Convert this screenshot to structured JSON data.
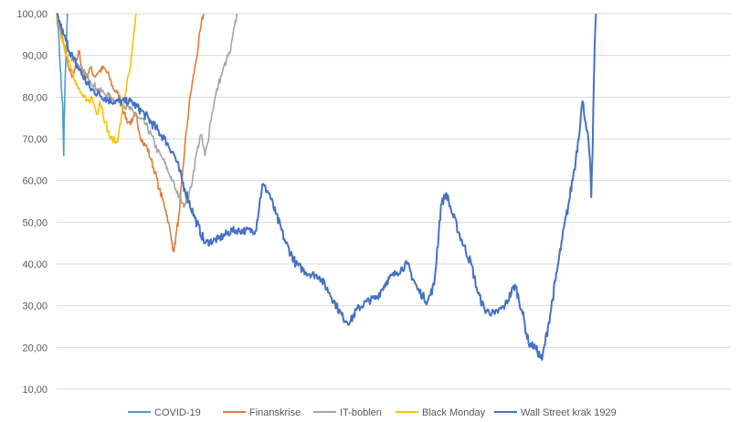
{
  "chart_data": {
    "type": "line",
    "title": "",
    "xlabel": "",
    "ylabel": "",
    "ylim": [
      10,
      100
    ],
    "y_ticks": [
      "10,00",
      "20,00",
      "30,00",
      "40,00",
      "50,00",
      "60,00",
      "70,00",
      "80,00",
      "90,00",
      "100,00"
    ],
    "grid": true,
    "legend_position": "bottom",
    "x_index_max": 1000,
    "series": [
      {
        "name": "COVID-19",
        "color": "#4e9ad3",
        "points": [
          [
            0,
            100
          ],
          [
            2,
            97
          ],
          [
            4,
            92
          ],
          [
            5,
            88
          ],
          [
            6,
            86
          ],
          [
            7,
            82
          ],
          [
            8,
            80
          ],
          [
            8.5,
            79
          ],
          [
            9,
            78
          ],
          [
            9.5,
            73
          ],
          [
            10,
            70
          ],
          [
            10.5,
            66
          ],
          [
            11,
            72
          ],
          [
            11.5,
            76
          ],
          [
            12,
            80
          ],
          [
            12.5,
            83
          ],
          [
            13,
            86
          ],
          [
            14,
            90
          ],
          [
            15,
            95
          ],
          [
            16,
            100
          ]
        ]
      },
      {
        "name": "Finanskrise",
        "color": "#e07b39",
        "points": [
          [
            0,
            100
          ],
          [
            6,
            96
          ],
          [
            12,
            91
          ],
          [
            18,
            87
          ],
          [
            24,
            85
          ],
          [
            30,
            89
          ],
          [
            34,
            91
          ],
          [
            38,
            86
          ],
          [
            44,
            85
          ],
          [
            50,
            87
          ],
          [
            56,
            85
          ],
          [
            62,
            86
          ],
          [
            70,
            87
          ],
          [
            78,
            85
          ],
          [
            84,
            82
          ],
          [
            90,
            81
          ],
          [
            96,
            79
          ],
          [
            100,
            76
          ],
          [
            106,
            74
          ],
          [
            112,
            74
          ],
          [
            118,
            76
          ],
          [
            122,
            72
          ],
          [
            128,
            69
          ],
          [
            134,
            68
          ],
          [
            140,
            65
          ],
          [
            146,
            62
          ],
          [
            152,
            58
          ],
          [
            158,
            55
          ],
          [
            162,
            53
          ],
          [
            166,
            50
          ],
          [
            170,
            46
          ],
          [
            174,
            43
          ],
          [
            178,
            48
          ],
          [
            182,
            52
          ],
          [
            186,
            60
          ],
          [
            190,
            68
          ],
          [
            194,
            74
          ],
          [
            198,
            80
          ],
          [
            202,
            84
          ],
          [
            206,
            88
          ],
          [
            210,
            92
          ],
          [
            214,
            97
          ],
          [
            218,
            100
          ]
        ]
      },
      {
        "name": "IT-boblen",
        "color": "#a5a5a5",
        "points": [
          [
            0,
            100
          ],
          [
            10,
            93
          ],
          [
            20,
            90
          ],
          [
            30,
            88
          ],
          [
            40,
            86
          ],
          [
            50,
            84
          ],
          [
            60,
            82
          ],
          [
            70,
            81
          ],
          [
            80,
            80
          ],
          [
            90,
            79
          ],
          [
            100,
            78
          ],
          [
            110,
            77
          ],
          [
            120,
            75
          ],
          [
            130,
            74
          ],
          [
            140,
            71
          ],
          [
            150,
            67
          ],
          [
            158,
            65
          ],
          [
            166,
            62
          ],
          [
            172,
            60
          ],
          [
            178,
            57
          ],
          [
            184,
            56
          ],
          [
            190,
            54
          ],
          [
            196,
            56
          ],
          [
            202,
            61
          ],
          [
            208,
            67
          ],
          [
            214,
            71
          ],
          [
            220,
            66
          ],
          [
            224,
            69
          ],
          [
            228,
            74
          ],
          [
            234,
            79
          ],
          [
            240,
            83
          ],
          [
            246,
            86
          ],
          [
            252,
            89
          ],
          [
            258,
            91
          ],
          [
            264,
            97
          ],
          [
            268,
            100
          ]
        ]
      },
      {
        "name": "Black Monday",
        "color": "#ffc000",
        "points": [
          [
            0,
            100
          ],
          [
            4,
            97
          ],
          [
            8,
            94
          ],
          [
            12,
            91
          ],
          [
            16,
            90
          ],
          [
            20,
            88
          ],
          [
            24,
            86
          ],
          [
            28,
            84
          ],
          [
            32,
            82
          ],
          [
            36,
            81
          ],
          [
            40,
            80
          ],
          [
            44,
            79
          ],
          [
            48,
            79
          ],
          [
            52,
            80
          ],
          [
            56,
            78
          ],
          [
            60,
            76
          ],
          [
            64,
            79
          ],
          [
            68,
            77
          ],
          [
            72,
            74
          ],
          [
            76,
            72
          ],
          [
            80,
            70
          ],
          [
            84,
            70
          ],
          [
            88,
            69
          ],
          [
            92,
            71
          ],
          [
            96,
            75
          ],
          [
            100,
            79
          ],
          [
            104,
            83
          ],
          [
            108,
            86
          ],
          [
            110,
            88
          ],
          [
            112,
            91
          ],
          [
            114,
            94
          ],
          [
            116,
            97
          ],
          [
            118,
            100
          ]
        ]
      },
      {
        "name": "Wall Street krak 1929",
        "color": "#4472c4",
        "points": [
          [
            0,
            100
          ],
          [
            10,
            95
          ],
          [
            25,
            89
          ],
          [
            50,
            82
          ],
          [
            80,
            79
          ],
          [
            110,
            79
          ],
          [
            130,
            76
          ],
          [
            160,
            70
          ],
          [
            175,
            66
          ],
          [
            190,
            58
          ],
          [
            205,
            51
          ],
          [
            220,
            45
          ],
          [
            240,
            46
          ],
          [
            260,
            48
          ],
          [
            280,
            48
          ],
          [
            295,
            48
          ],
          [
            305,
            59
          ],
          [
            315,
            57
          ],
          [
            325,
            52
          ],
          [
            340,
            45
          ],
          [
            355,
            40
          ],
          [
            370,
            38
          ],
          [
            390,
            37
          ],
          [
            405,
            33
          ],
          [
            415,
            30
          ],
          [
            425,
            27
          ],
          [
            435,
            26
          ],
          [
            445,
            29
          ],
          [
            460,
            31
          ],
          [
            475,
            32
          ],
          [
            490,
            36
          ],
          [
            505,
            38
          ],
          [
            520,
            40
          ],
          [
            535,
            34
          ],
          [
            550,
            31
          ],
          [
            560,
            35
          ],
          [
            570,
            54
          ],
          [
            578,
            57
          ],
          [
            585,
            53
          ],
          [
            600,
            46
          ],
          [
            615,
            40
          ],
          [
            625,
            33
          ],
          [
            635,
            29
          ],
          [
            650,
            28
          ],
          [
            665,
            30
          ],
          [
            680,
            35
          ],
          [
            690,
            29
          ],
          [
            700,
            21
          ],
          [
            710,
            20
          ],
          [
            720,
            17
          ],
          [
            730,
            26
          ],
          [
            740,
            36
          ],
          [
            750,
            46
          ],
          [
            760,
            55
          ],
          [
            770,
            65
          ],
          [
            780,
            79
          ],
          [
            787,
            72
          ],
          [
            791,
            65
          ],
          [
            793,
            56
          ],
          [
            795,
            67
          ],
          [
            797,
            85
          ],
          [
            798,
            92
          ],
          [
            800,
            100
          ]
        ]
      }
    ]
  }
}
